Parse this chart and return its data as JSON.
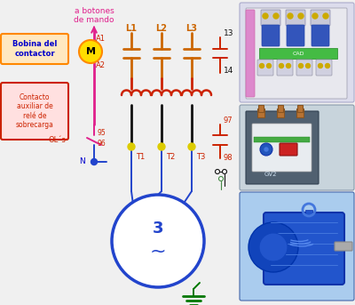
{
  "bg_color": "#f0f0f0",
  "text_pink": "#e0208c",
  "text_blue": "#0000cc",
  "text_red": "#cc2200",
  "text_black": "#111111",
  "wire_red": "#cc2200",
  "wire_orange": "#cc6600",
  "wire_blue": "#2244cc",
  "wire_black": "#111111",
  "wire_green": "#007700",
  "wire_pink": "#e0208c",
  "contact_yellow": "#ddcc00",
  "bobina_fill": "#ffdd00",
  "bobina_edge": "#ff8800",
  "bobina_box_fill": "#ffe8c0",
  "bobina_box_edge": "#ff8800",
  "contacto_box_fill": "#ffe0e0",
  "contacto_box_edge": "#cc2200",
  "motor_edge": "#2244cc",
  "labels": {
    "a_botones": "a botones\nde mando",
    "bobina_title": "Bobina del\ncontactor",
    "contacto_title": "Contacto\nauxiliar de\nrelé de\nsobrecarga",
    "A1": "A1",
    "A2": "A2",
    "L1": "L1",
    "L2": "L2",
    "L3": "L3",
    "T1": "T1",
    "T2": "T2",
    "T3": "T3",
    "OLs": "OL´s",
    "N": "N",
    "n13": "13",
    "n14": "14",
    "n95": "95",
    "n96": "96",
    "n97": "97",
    "n98": "98",
    "motor3": "3",
    "motorwave": "~"
  }
}
